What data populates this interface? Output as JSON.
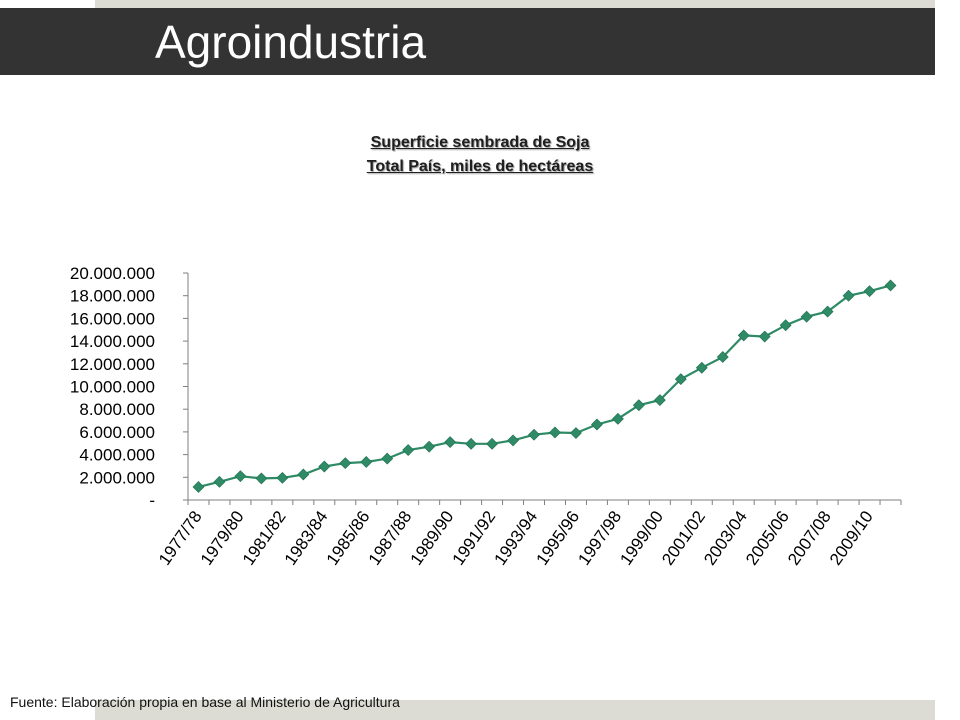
{
  "slide": {
    "title": "Agroindustria",
    "source": "Fuente: Elaboración propia en base al Ministerio de Agricultura"
  },
  "colors": {
    "title_bar": "#333333",
    "accent_strip": "#dcdcd5",
    "series": "#2e8b66"
  },
  "chart_data": {
    "type": "line",
    "title": "Superficie sembrada de Soja",
    "subtitle": "Total País, miles de hectáreas",
    "xlabel": "",
    "ylabel": "",
    "ylim": [
      0,
      20000000
    ],
    "yticks": [
      0,
      2000000,
      4000000,
      6000000,
      8000000,
      10000000,
      12000000,
      14000000,
      16000000,
      18000000,
      20000000
    ],
    "ytick_labels": [
      "-",
      "2.000.000",
      "4.000.000",
      "6.000.000",
      "8.000.000",
      "10.000.000",
      "12.000.000",
      "14.000.000",
      "16.000.000",
      "18.000.000",
      "20.000.000"
    ],
    "categories": [
      "1977/78",
      "1978/79",
      "1979/80",
      "1980/81",
      "1981/82",
      "1982/83",
      "1983/84",
      "1984/85",
      "1985/86",
      "1986/87",
      "1987/88",
      "1988/89",
      "1989/90",
      "1990/91",
      "1991/92",
      "1992/93",
      "1993/94",
      "1994/95",
      "1995/96",
      "1996/97",
      "1997/98",
      "1998/99",
      "1999/00",
      "2000/01",
      "2001/02",
      "2002/03",
      "2003/04",
      "2004/05",
      "2005/06",
      "2006/07",
      "2007/08",
      "2008/09",
      "2009/10",
      "2010/11"
    ],
    "xtick_labels_shown": [
      "1977/78",
      "1979/80",
      "1981/82",
      "1983/84",
      "1985/86",
      "1987/88",
      "1989/90",
      "1991/92",
      "1993/94",
      "1995/96",
      "1997/98",
      "1999/00",
      "2001/02",
      "2003/04",
      "2005/06",
      "2007/08",
      "2009/10"
    ],
    "series": [
      {
        "values": [
          1150000,
          1600000,
          2100000,
          1900000,
          1950000,
          2250000,
          2950000,
          3250000,
          3350000,
          3650000,
          4400000,
          4700000,
          5100000,
          4950000,
          4950000,
          5250000,
          5750000,
          5950000,
          5900000,
          6650000,
          7150000,
          8350000,
          8800000,
          10650000,
          11650000,
          12600000,
          14500000,
          14400000,
          15400000,
          16150000,
          16600000,
          18000000,
          18400000,
          18900000
        ]
      }
    ],
    "grid": false,
    "legend": "none"
  }
}
